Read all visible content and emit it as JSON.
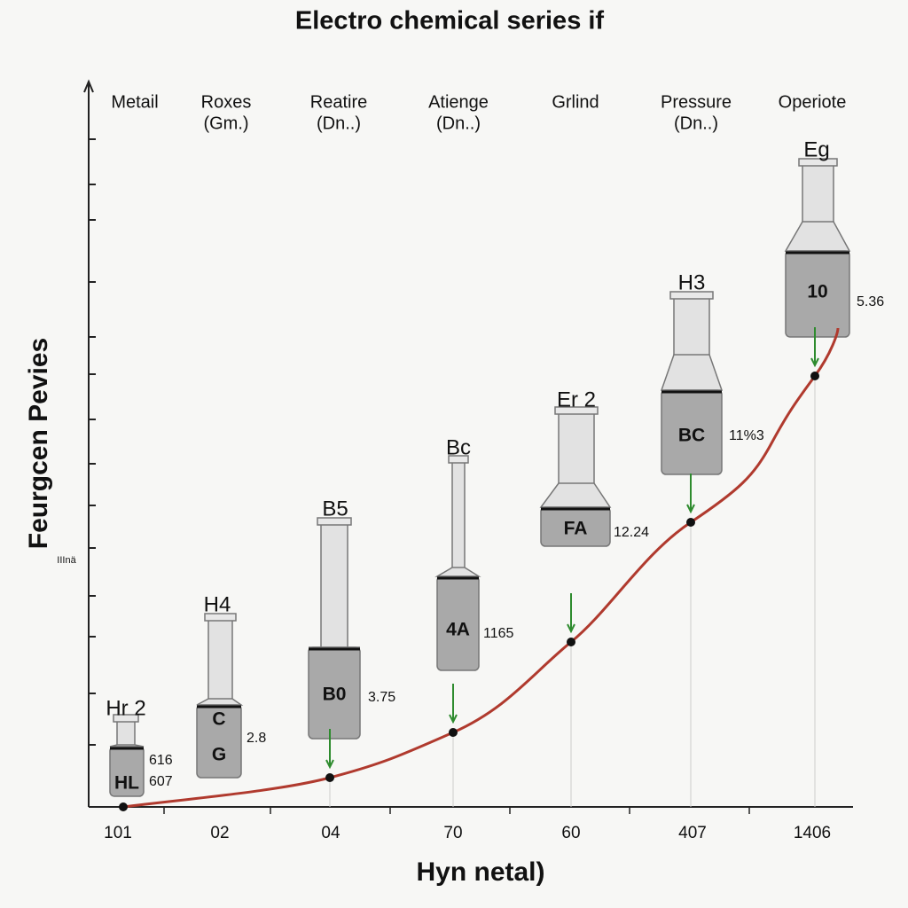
{
  "title": "Electro chemical series if",
  "y_axis_label": "Feurgcen Pevies",
  "y_axis_note": "IIInä",
  "x_axis_label": "Hyn netal)",
  "columns": [
    {
      "header": [
        "Metail"
      ]
    },
    {
      "header": [
        "Roxes",
        "(Gm.)"
      ]
    },
    {
      "header": [
        "Reatire",
        "(Dn..)"
      ]
    },
    {
      "header": [
        "Atienge",
        "(Dn..)"
      ]
    },
    {
      "header": [
        "Grlind"
      ]
    },
    {
      "header": [
        "Pressure",
        "(Dn..)"
      ]
    },
    {
      "header": [
        "Operiote"
      ]
    }
  ],
  "bottles": [
    {
      "label": "Hr 2",
      "inner": [
        "HL"
      ],
      "side": [
        "616",
        "607"
      ]
    },
    {
      "label": "H4",
      "inner": [
        "C",
        "G"
      ],
      "side": [
        "2.8"
      ]
    },
    {
      "label": "B5",
      "inner": [
        "B0"
      ],
      "side": [
        "3.75"
      ]
    },
    {
      "label": "Bc",
      "inner": [
        "4A"
      ],
      "side": [
        "1165"
      ]
    },
    {
      "label": "Er 2",
      "inner": [
        "FA"
      ],
      "side": [
        "12.24"
      ]
    },
    {
      "label": "H3",
      "inner": [
        "BC"
      ],
      "side": [
        "11%3"
      ]
    },
    {
      "label": "Eg",
      "inner": [
        "10"
      ],
      "side": [
        "5.36"
      ]
    }
  ],
  "x_labels": [
    "101",
    "02",
    "04",
    "70",
    "60",
    "407",
    "1406"
  ]
}
